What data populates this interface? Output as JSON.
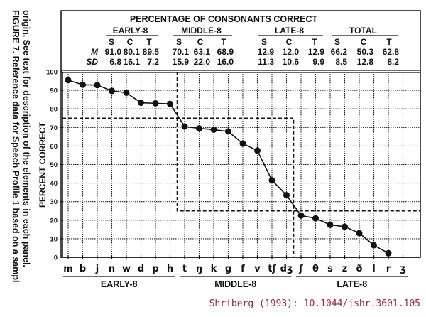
{
  "caption": {
    "line1": "FIGURE 7. Reference data for Speech Profile 1 based on a sampl",
    "line2": "origin. See text for description of the elements in each panel."
  },
  "summary_table": {
    "title": "PERCENTAGE OF CONSONANTS CORRECT",
    "row_labels": {
      "mean": "M",
      "sd": "SD"
    },
    "groups": [
      {
        "label": "EARLY-8",
        "cols": [
          "S",
          "C",
          "T"
        ],
        "mean": [
          "91.0",
          "80.1",
          "89.5"
        ],
        "sd": [
          "6.8",
          "16.1",
          "7.2"
        ]
      },
      {
        "label": "MIDDLE-8",
        "cols": [
          "S",
          "C",
          "T"
        ],
        "mean": [
          "70.1",
          "63.1",
          "68.9"
        ],
        "sd": [
          "15.9",
          "22.0",
          "16.0"
        ]
      },
      {
        "label": "LATE-8",
        "cols": [
          "S",
          "C",
          "T"
        ],
        "mean": [
          "12.9",
          "12.0",
          "12.9"
        ],
        "sd": [
          "11.3",
          "10.6",
          "9.9"
        ]
      },
      {
        "label": "TOTAL",
        "cols": [
          "S",
          "C",
          "T"
        ],
        "mean": [
          "66.2",
          "50.3",
          "62.8"
        ],
        "sd": [
          "8.5",
          "12.8",
          "8.2"
        ]
      }
    ]
  },
  "chart_data": {
    "type": "line",
    "ylabel": "PERCENT CORRECT",
    "ylim": [
      0,
      100
    ],
    "yticks": [
      0,
      10,
      20,
      30,
      40,
      50,
      60,
      70,
      80,
      90,
      100
    ],
    "grid": true,
    "categories": [
      "m",
      "b",
      "j",
      "n",
      "w",
      "d",
      "p",
      "h",
      "t",
      "ŋ",
      "k",
      "g",
      "f",
      "v",
      "tʃ",
      "dʒ",
      "ʃ",
      "θ",
      "s",
      "z",
      "ð",
      "l",
      "r",
      "ʒ"
    ],
    "values": [
      95.5,
      93,
      92.8,
      89.7,
      88.7,
      83.3,
      83,
      82.7,
      70.5,
      69.5,
      68.8,
      67.8,
      61.3,
      57.5,
      41.5,
      33.5,
      22.5,
      21,
      17.5,
      16.5,
      13,
      6.5,
      2.2,
      null
    ],
    "category_groups": [
      {
        "label": "EARLY-8",
        "start": 0,
        "end": 7
      },
      {
        "label": "MIDDLE-8",
        "start": 8,
        "end": 15
      },
      {
        "label": "LATE-8",
        "start": 16,
        "end": 23
      }
    ],
    "thresholds": [
      {
        "kind": "early-boundary",
        "value": 75
      },
      {
        "kind": "late-boundary",
        "value": 25
      }
    ]
  },
  "citation": "Shriberg (1993): 10.1044/jshr.3601.105"
}
